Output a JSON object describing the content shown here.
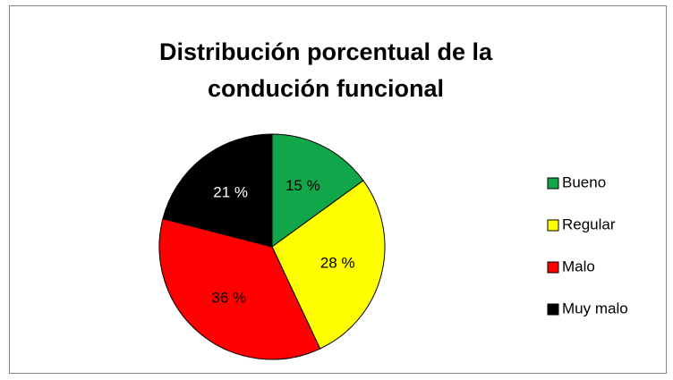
{
  "chart_data": {
    "type": "pie",
    "title": [
      "Distribución porcentual de la",
      "condución funcional"
    ],
    "categories": [
      "Bueno",
      "Regular",
      "Malo",
      "Muy malo"
    ],
    "values": [
      15,
      28,
      36,
      21
    ],
    "value_labels": [
      "15 %",
      "28 %",
      "36 %",
      "21 %"
    ],
    "colors": [
      "#12a64a",
      "#ffff00",
      "#ff0000",
      "#000000"
    ],
    "legend": "right"
  }
}
